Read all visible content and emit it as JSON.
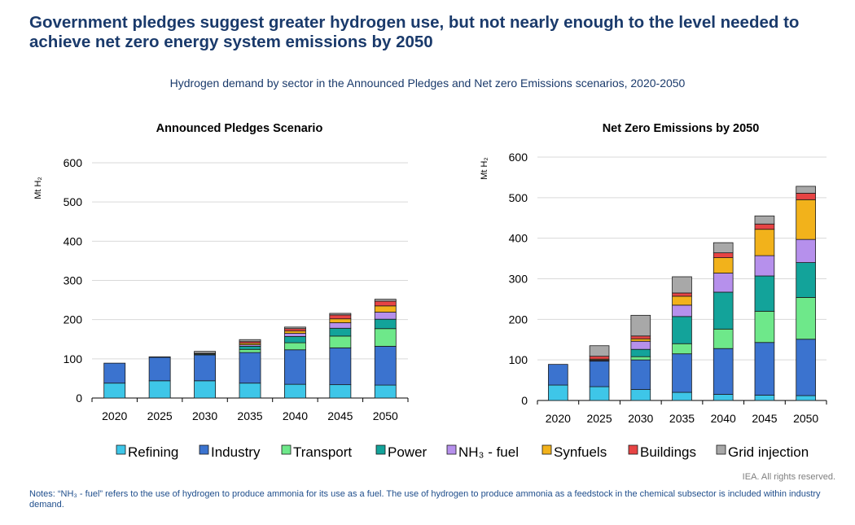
{
  "page": {
    "title": "Government pledges suggest greater hydrogen use, but not nearly enough to the level needed to achieve net zero energy system emissions by 2050",
    "subtitle": "Hydrogen demand by sector in the Announced Pledges and Net zero Emissions scenarios, 2020-2050",
    "credit": "IEA. All rights reserved.",
    "notes": "Notes: “NH₃ - fuel” refers to the use of hydrogen to produce ammonia for its use as a fuel. The use of hydrogen to produce ammonia as a feedstock in the chemical subsector is included within industry demand."
  },
  "colors": {
    "Refining": "#3ec6e8",
    "Industry": "#3b73cf",
    "Transport": "#6ee88a",
    "Power": "#13a39a",
    "NH3 - fuel": "#b690ec",
    "Synfuels": "#f2b21b",
    "Buildings": "#e74444",
    "Grid injection": "#a8a8a8"
  },
  "legend": [
    {
      "key": "Refining",
      "label": "Refining"
    },
    {
      "key": "Industry",
      "label": "Industry"
    },
    {
      "key": "Transport",
      "label": "Transport"
    },
    {
      "key": "Power",
      "label": "Power"
    },
    {
      "key": "NH3 - fuel",
      "label": "NH₃ - fuel"
    },
    {
      "key": "Synfuels",
      "label": "Synfuels"
    },
    {
      "key": "Buildings",
      "label": "Buildings"
    },
    {
      "key": "Grid injection",
      "label": "Grid injection"
    }
  ],
  "chart_data": [
    {
      "type": "bar",
      "stacked": true,
      "title": "Announced Pledges Scenario",
      "ylabel": "Mt H₂",
      "ylim": [
        0,
        600
      ],
      "yticks": [
        0,
        100,
        200,
        300,
        400,
        500,
        600
      ],
      "grid": true,
      "categories": [
        "2020",
        "2025",
        "2030",
        "2035",
        "2040",
        "2045",
        "2050"
      ],
      "series": [
        {
          "name": "Refining",
          "values": [
            38,
            44,
            44,
            38,
            35,
            34,
            33
          ]
        },
        {
          "name": "Industry",
          "values": [
            51,
            60,
            66,
            78,
            88,
            94,
            99
          ]
        },
        {
          "name": "Transport",
          "values": [
            0,
            1,
            2,
            8,
            18,
            30,
            45
          ]
        },
        {
          "name": "Power",
          "values": [
            0,
            0,
            1,
            8,
            16,
            20,
            24
          ]
        },
        {
          "name": "NH3 - fuel",
          "values": [
            0,
            0,
            1,
            4,
            8,
            14,
            18
          ]
        },
        {
          "name": "Synfuels",
          "values": [
            0,
            0,
            0,
            4,
            6,
            10,
            16
          ]
        },
        {
          "name": "Buildings",
          "values": [
            0,
            0,
            0,
            4,
            6,
            10,
            12
          ]
        },
        {
          "name": "Grid injection",
          "values": [
            0,
            0,
            5,
            5,
            4,
            4,
            5
          ]
        }
      ]
    },
    {
      "type": "bar",
      "stacked": true,
      "title": "Net Zero Emissions by 2050",
      "ylabel": "Mt H₂",
      "ylim": [
        0,
        600
      ],
      "yticks": [
        0,
        100,
        200,
        300,
        400,
        500,
        600
      ],
      "grid": true,
      "categories": [
        "2020",
        "2025",
        "2030",
        "2035",
        "2040",
        "2045",
        "2050"
      ],
      "series": [
        {
          "name": "Refining",
          "values": [
            38,
            34,
            27,
            20,
            15,
            13,
            12
          ]
        },
        {
          "name": "Industry",
          "values": [
            51,
            63,
            73,
            95,
            113,
            130,
            139
          ]
        },
        {
          "name": "Transport",
          "values": [
            0,
            1,
            8,
            25,
            48,
            77,
            103
          ]
        },
        {
          "name": "Power",
          "values": [
            0,
            0,
            18,
            67,
            91,
            87,
            86
          ]
        },
        {
          "name": "NH3 - fuel",
          "values": [
            0,
            2,
            20,
            28,
            47,
            50,
            57
          ]
        },
        {
          "name": "Synfuels",
          "values": [
            0,
            2,
            6,
            22,
            38,
            65,
            98
          ]
        },
        {
          "name": "Buildings",
          "values": [
            0,
            7,
            7,
            8,
            12,
            13,
            16
          ]
        },
        {
          "name": "Grid injection",
          "values": [
            0,
            26,
            51,
            40,
            25,
            20,
            17
          ]
        }
      ]
    }
  ]
}
